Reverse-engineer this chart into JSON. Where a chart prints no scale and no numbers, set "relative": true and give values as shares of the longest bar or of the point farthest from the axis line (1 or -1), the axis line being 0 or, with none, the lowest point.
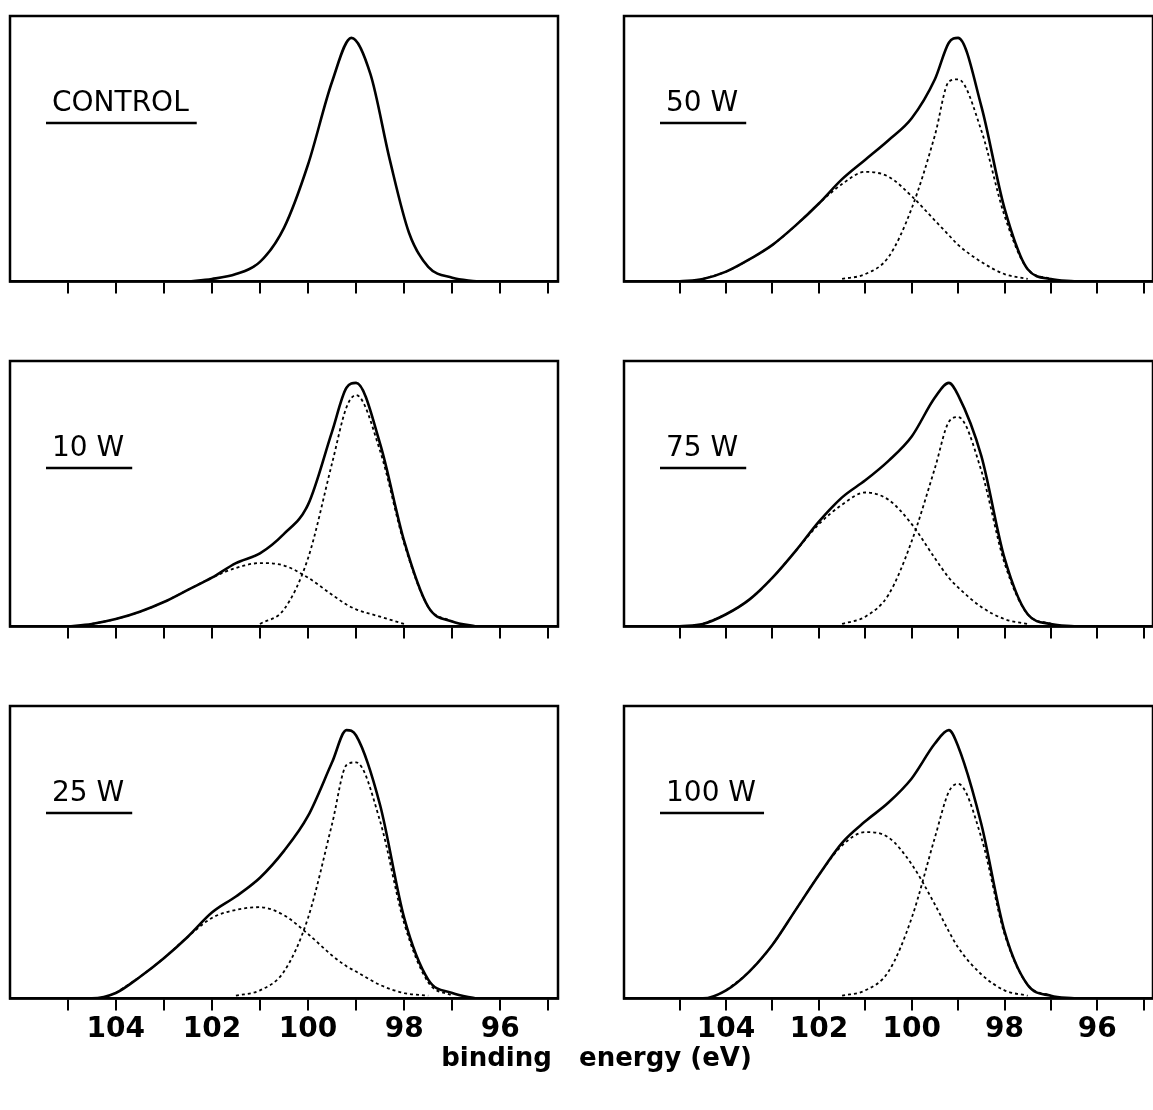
{
  "chart_data": [
    {
      "type": "line",
      "relative": true,
      "annotations": [
        "CONTROL"
      ],
      "marker": "none",
      "tick_labels": false,
      "xlim": [
        106.2,
        94.8
      ],
      "xticks": [
        {
          "value": 105,
          "label": null
        },
        {
          "value": 104,
          "label": null
        },
        {
          "value": 103,
          "label": null
        },
        {
          "value": 102,
          "label": null
        },
        {
          "value": 101,
          "label": null
        },
        {
          "value": 100,
          "label": null
        },
        {
          "value": 99,
          "label": null
        },
        {
          "value": 98,
          "label": null
        },
        {
          "value": 97,
          "label": null
        },
        {
          "value": 96,
          "label": null
        },
        {
          "value": 95,
          "label": null
        }
      ],
      "series": [
        {
          "color": "#000000",
          "line_style": "solid",
          "x": [
            102.5,
            102,
            101.5,
            101,
            100.5,
            100,
            99.5,
            99.1,
            98.7,
            98.3,
            97.9,
            97.5,
            97,
            96.5
          ],
          "values": [
            0,
            0.01,
            0.03,
            0.08,
            0.22,
            0.48,
            0.82,
            1,
            0.85,
            0.5,
            0.2,
            0.06,
            0.015,
            0
          ]
        }
      ]
    },
    {
      "type": "line",
      "relative": true,
      "annotations": [
        "50 W"
      ],
      "marker": "none",
      "tick_labels": false,
      "xlim": [
        106.2,
        94.8
      ],
      "xticks": [
        {
          "value": 105,
          "label": null
        },
        {
          "value": 104,
          "label": null
        },
        {
          "value": 103,
          "label": null
        },
        {
          "value": 102,
          "label": null
        },
        {
          "value": 101,
          "label": null
        },
        {
          "value": 100,
          "label": null
        },
        {
          "value": 99,
          "label": null
        },
        {
          "value": 98,
          "label": null
        },
        {
          "value": 97,
          "label": null
        },
        {
          "value": 96,
          "label": null
        },
        {
          "value": 95,
          "label": null
        }
      ],
      "series": [
        {
          "color": "#000000",
          "line_style": "solid",
          "x": [
            105,
            104.5,
            104,
            103.5,
            103,
            102.5,
            102,
            101.5,
            101,
            100.5,
            100,
            99.5,
            99.2,
            99,
            98.5,
            98,
            97.5,
            97,
            96.5
          ],
          "values": [
            0,
            0.01,
            0.04,
            0.09,
            0.15,
            0.23,
            0.32,
            0.42,
            0.5,
            0.58,
            0.67,
            0.83,
            0.98,
            1,
            0.72,
            0.3,
            0.05,
            0.01,
            0
          ]
        },
        {
          "color": "#000000",
          "line_style": "dotted",
          "x": [
            104.5,
            104,
            103.5,
            103,
            102.5,
            102,
            101.5,
            101,
            100.5,
            100,
            99.5,
            99.2,
            99,
            98.5,
            98,
            97.5
          ],
          "values": [
            0.01,
            0.04,
            0.09,
            0.15,
            0.23,
            0.32,
            0.4,
            0.45,
            0.43,
            0.35,
            0.25,
            0.19,
            0.15,
            0.08,
            0.03,
            0.01
          ]
        },
        {
          "color": "#000000",
          "line_style": "dotted",
          "x": [
            101.5,
            101,
            100.5,
            100,
            99.5,
            99.2,
            99,
            98.5,
            98,
            97.5,
            97
          ],
          "values": [
            0.01,
            0.03,
            0.1,
            0.3,
            0.6,
            0.82,
            0.83,
            0.62,
            0.27,
            0.05,
            0.01
          ]
        }
      ]
    },
    {
      "type": "line",
      "relative": true,
      "annotations": [
        "10 W"
      ],
      "marker": "none",
      "tick_labels": false,
      "xlim": [
        106.2,
        94.8
      ],
      "xticks": [
        {
          "value": 105,
          "label": null
        },
        {
          "value": 104,
          "label": null
        },
        {
          "value": 103,
          "label": null
        },
        {
          "value": 102,
          "label": null
        },
        {
          "value": 101,
          "label": null
        },
        {
          "value": 100,
          "label": null
        },
        {
          "value": 99,
          "label": null
        },
        {
          "value": 98,
          "label": null
        },
        {
          "value": 97,
          "label": null
        },
        {
          "value": 96,
          "label": null
        },
        {
          "value": 95,
          "label": null
        }
      ],
      "series": [
        {
          "color": "#000000",
          "line_style": "solid",
          "x": [
            105,
            104.5,
            104,
            103.5,
            103,
            102.5,
            102,
            101.5,
            101,
            100.5,
            100,
            99.5,
            99.2,
            99,
            98.5,
            98,
            97.5,
            97,
            96.5
          ],
          "values": [
            0,
            0.01,
            0.03,
            0.06,
            0.1,
            0.15,
            0.2,
            0.26,
            0.3,
            0.38,
            0.5,
            0.8,
            0.98,
            1,
            0.75,
            0.35,
            0.08,
            0.02,
            0
          ]
        },
        {
          "color": "#000000",
          "line_style": "dotted",
          "x": [
            104.5,
            104,
            103.5,
            103,
            102.5,
            102,
            101.5,
            101,
            100.5,
            100,
            99.5,
            99.2,
            99,
            98.5,
            98
          ],
          "values": [
            0.01,
            0.03,
            0.06,
            0.1,
            0.15,
            0.2,
            0.24,
            0.26,
            0.25,
            0.2,
            0.13,
            0.09,
            0.07,
            0.04,
            0.01
          ]
        },
        {
          "color": "#000000",
          "line_style": "dotted",
          "x": [
            101,
            100.5,
            100,
            99.5,
            99.2,
            99,
            98.5,
            98,
            97.5,
            97
          ],
          "values": [
            0.01,
            0.07,
            0.28,
            0.67,
            0.9,
            0.95,
            0.72,
            0.34,
            0.08,
            0.02
          ]
        }
      ]
    },
    {
      "type": "line",
      "relative": true,
      "annotations": [
        "75 W"
      ],
      "marker": "none",
      "tick_labels": false,
      "xlim": [
        106.2,
        94.8
      ],
      "xticks": [
        {
          "value": 105,
          "label": null
        },
        {
          "value": 104,
          "label": null
        },
        {
          "value": 103,
          "label": null
        },
        {
          "value": 102,
          "label": null
        },
        {
          "value": 101,
          "label": null
        },
        {
          "value": 100,
          "label": null
        },
        {
          "value": 99,
          "label": null
        },
        {
          "value": 98,
          "label": null
        },
        {
          "value": 97,
          "label": null
        },
        {
          "value": 96,
          "label": null
        },
        {
          "value": 95,
          "label": null
        }
      ],
      "series": [
        {
          "color": "#000000",
          "line_style": "solid",
          "x": [
            105,
            104.5,
            104,
            103.5,
            103,
            102.5,
            102,
            101.5,
            101,
            100.5,
            100,
            99.5,
            99.2,
            99,
            98.5,
            98,
            97.5,
            97,
            96.5
          ],
          "values": [
            0,
            0.01,
            0.05,
            0.11,
            0.2,
            0.31,
            0.43,
            0.53,
            0.6,
            0.68,
            0.78,
            0.94,
            1,
            0.95,
            0.7,
            0.28,
            0.05,
            0.01,
            0
          ]
        },
        {
          "color": "#000000",
          "line_style": "dotted",
          "x": [
            104.5,
            104,
            103.5,
            103,
            102.5,
            102,
            101.5,
            101,
            100.5,
            100,
            99.5,
            99.2,
            99,
            98.5,
            98,
            97.5
          ],
          "values": [
            0.01,
            0.05,
            0.11,
            0.2,
            0.31,
            0.42,
            0.5,
            0.55,
            0.52,
            0.42,
            0.28,
            0.2,
            0.16,
            0.08,
            0.03,
            0.01
          ]
        },
        {
          "color": "#000000",
          "line_style": "dotted",
          "x": [
            101.5,
            101,
            100.5,
            100,
            99.5,
            99.2,
            99,
            98.5,
            98,
            97.5,
            97
          ],
          "values": [
            0.01,
            0.04,
            0.13,
            0.35,
            0.65,
            0.84,
            0.86,
            0.64,
            0.26,
            0.05,
            0.01
          ]
        }
      ]
    },
    {
      "type": "line",
      "relative": true,
      "annotations": [
        "25 W"
      ],
      "xlabel": "binding   energy (eV)",
      "marker": "none",
      "tick_labels": "x",
      "xlim": [
        106.2,
        94.8
      ],
      "xticks": [
        {
          "value": 105,
          "label": null
        },
        104,
        {
          "value": 103,
          "label": null
        },
        102,
        {
          "value": 101,
          "label": null
        },
        100,
        {
          "value": 99,
          "label": null
        },
        98,
        {
          "value": 97,
          "label": null
        },
        96,
        {
          "value": 95,
          "label": null
        }
      ],
      "series": [
        {
          "color": "#000000",
          "line_style": "solid",
          "x": [
            105,
            104.5,
            104,
            103.5,
            103,
            102.5,
            102,
            101.5,
            101,
            100.5,
            100,
            99.5,
            99.2,
            99,
            98.5,
            98,
            97.5,
            97,
            96.5
          ],
          "values": [
            0,
            0,
            0.02,
            0.08,
            0.15,
            0.23,
            0.32,
            0.38,
            0.45,
            0.55,
            0.68,
            0.88,
            1,
            0.98,
            0.72,
            0.3,
            0.07,
            0.02,
            0
          ]
        },
        {
          "color": "#000000",
          "line_style": "dotted",
          "x": [
            104,
            103.5,
            103,
            102.5,
            102,
            101.5,
            101,
            100.5,
            100,
            99.5,
            99.2,
            99,
            98.5,
            98,
            97.5
          ],
          "values": [
            0.02,
            0.08,
            0.15,
            0.23,
            0.3,
            0.33,
            0.34,
            0.31,
            0.24,
            0.16,
            0.12,
            0.1,
            0.05,
            0.02,
            0.01
          ]
        },
        {
          "color": "#000000",
          "line_style": "dotted",
          "x": [
            101.5,
            101,
            100.5,
            100,
            99.5,
            99.2,
            99,
            98.5,
            98,
            97.5,
            97
          ],
          "values": [
            0.01,
            0.03,
            0.1,
            0.3,
            0.65,
            0.87,
            0.88,
            0.66,
            0.28,
            0.06,
            0.01
          ]
        }
      ]
    },
    {
      "type": "line",
      "relative": true,
      "annotations": [
        "100 W"
      ],
      "marker": "none",
      "tick_labels": "x",
      "xlim": [
        106.2,
        94.8
      ],
      "xticks": [
        {
          "value": 105,
          "label": null
        },
        104,
        {
          "value": 103,
          "label": null
        },
        102,
        {
          "value": 101,
          "label": null
        },
        100,
        {
          "value": 99,
          "label": null
        },
        98,
        {
          "value": 97,
          "label": null
        },
        96,
        {
          "value": 95,
          "label": null
        }
      ],
      "series": [
        {
          "color": "#000000",
          "line_style": "solid",
          "x": [
            105,
            104.5,
            104,
            103.5,
            103,
            102.5,
            102,
            101.5,
            101,
            100.5,
            100,
            99.5,
            99.2,
            99,
            98.5,
            98,
            97.5,
            97,
            96.5
          ],
          "values": [
            0,
            0,
            0.03,
            0.1,
            0.2,
            0.33,
            0.46,
            0.58,
            0.66,
            0.73,
            0.82,
            0.95,
            1,
            0.94,
            0.65,
            0.25,
            0.05,
            0.01,
            0
          ]
        },
        {
          "color": "#000000",
          "line_style": "dotted",
          "x": [
            104,
            103.5,
            103,
            102.5,
            102,
            101.5,
            101,
            100.5,
            100,
            99.5,
            99.2,
            99,
            98.5,
            98,
            97.5
          ],
          "values": [
            0.03,
            0.1,
            0.2,
            0.33,
            0.46,
            0.57,
            0.62,
            0.6,
            0.5,
            0.35,
            0.25,
            0.19,
            0.09,
            0.03,
            0.01
          ]
        },
        {
          "color": "#000000",
          "line_style": "dotted",
          "x": [
            101.5,
            101,
            100.5,
            100,
            99.5,
            99.2,
            99,
            98.5,
            98,
            97.5,
            97
          ],
          "values": [
            0.01,
            0.03,
            0.1,
            0.3,
            0.6,
            0.77,
            0.8,
            0.6,
            0.24,
            0.05,
            0.01
          ]
        }
      ]
    }
  ]
}
